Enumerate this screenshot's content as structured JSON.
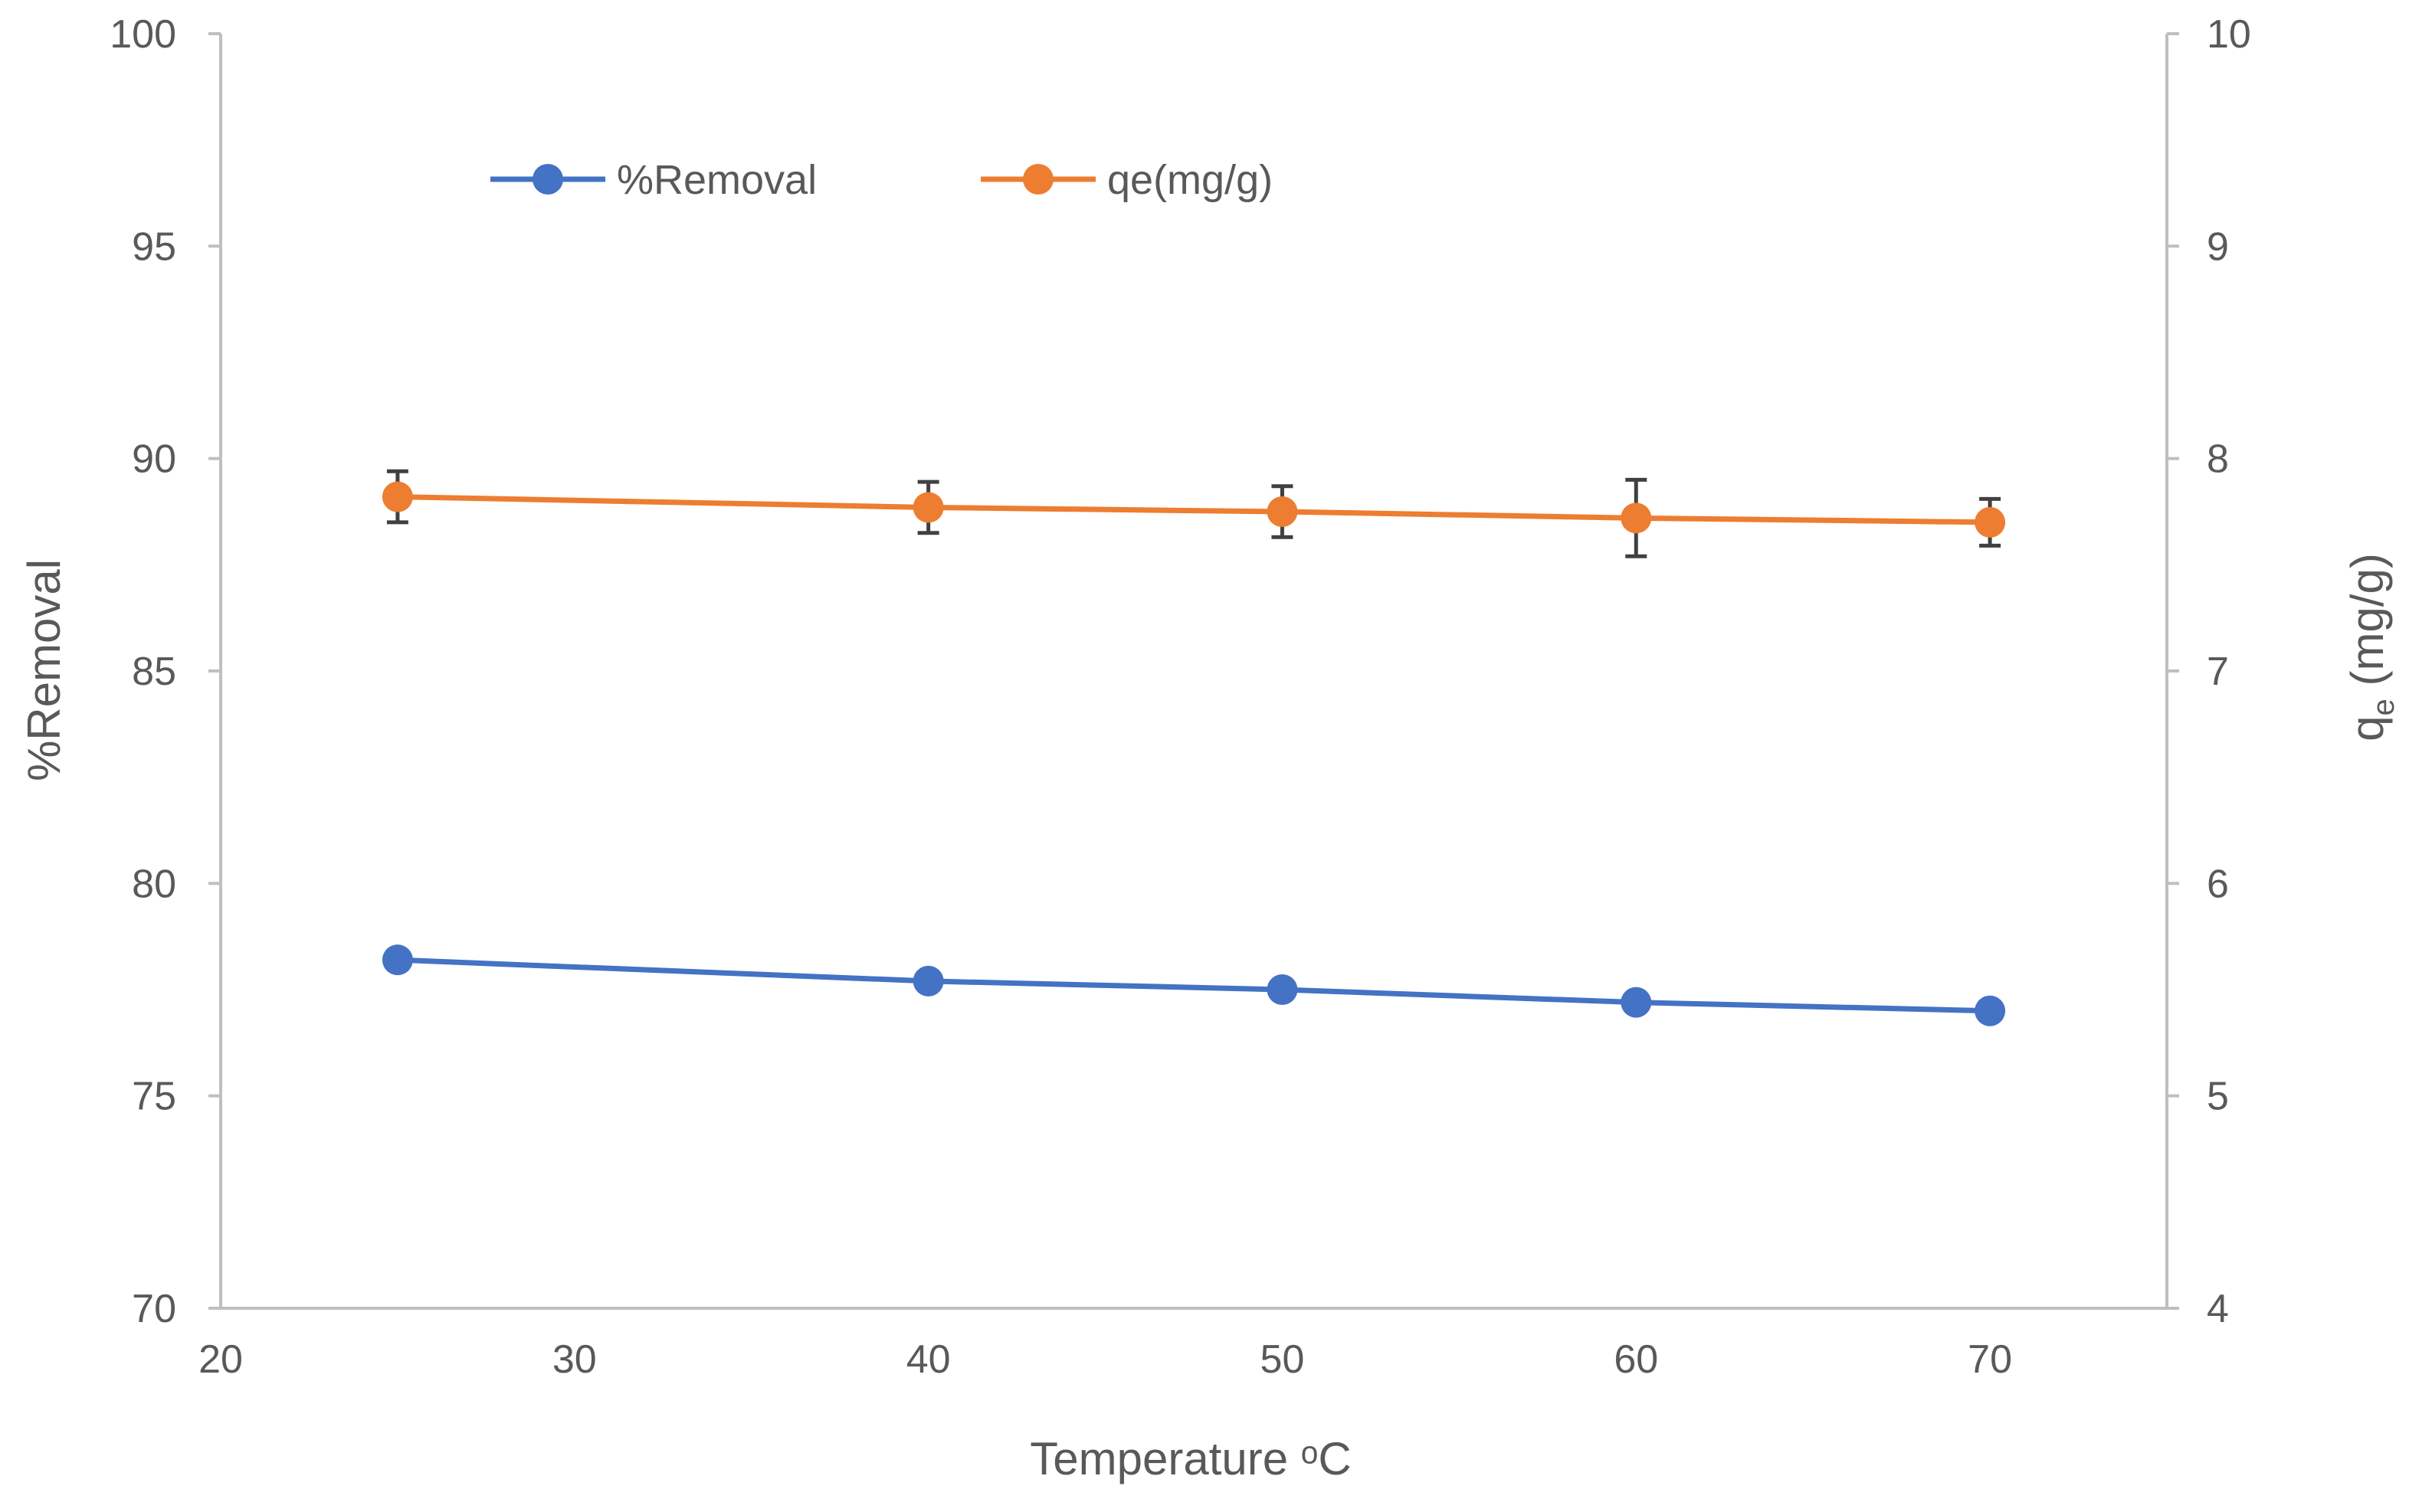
{
  "chart_data": {
    "type": "line",
    "title": "",
    "xlabel": "Temperature ᵒC",
    "ylabel_left": "%Removal",
    "ylabel_right": {
      "base": "q",
      "sub": "e",
      "rest": " (mg/g)"
    },
    "xlim": [
      20,
      75
    ],
    "xticks": [
      20,
      30,
      40,
      50,
      60,
      70
    ],
    "ylim_left": [
      70,
      100
    ],
    "yticks_left": [
      70,
      75,
      80,
      85,
      90,
      95,
      100
    ],
    "ylim_right": [
      4,
      10
    ],
    "yticks_right": [
      4,
      5,
      6,
      7,
      8,
      9,
      10
    ],
    "grid": false,
    "legend_position": "top-left",
    "series": [
      {
        "name": "%Removal",
        "axis": "left",
        "color": "#4472C4",
        "x": [
          25,
          40,
          50,
          60,
          70
        ],
        "y": [
          78.2,
          77.7,
          77.5,
          77.2,
          77.0
        ]
      },
      {
        "name": "qe(mg/g)",
        "axis": "right",
        "color": "#ED7D31",
        "x": [
          25,
          40,
          50,
          60,
          70
        ],
        "y": [
          7.82,
          7.77,
          7.75,
          7.72,
          7.7
        ],
        "error": [
          0.12,
          0.12,
          0.12,
          0.18,
          0.11
        ]
      }
    ]
  },
  "colors": {
    "axis": "#BFBFBF",
    "text": "#595959",
    "error_bar": "#404040"
  }
}
